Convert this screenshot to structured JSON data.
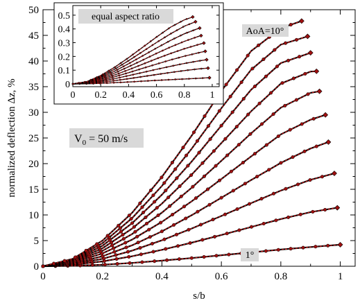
{
  "chart_data": [
    {
      "type": "line",
      "xlabel": "s/b",
      "ylabel": "normalized deflection Δz, %",
      "xlim": [
        0,
        1.05
      ],
      "ylim": [
        0,
        50
      ],
      "xticks": [
        0,
        0.2,
        0.4,
        0.6,
        0.8,
        1
      ],
      "xtick_labels": [
        "0",
        "0.2",
        "0.4",
        "0.6",
        "0.8",
        "1"
      ],
      "yticks": [
        0,
        5,
        10,
        15,
        20,
        25,
        30,
        35,
        40,
        45,
        50
      ],
      "ytick_labels": [
        "0",
        "5",
        "10",
        "15",
        "20",
        "25",
        "30",
        "35",
        "40",
        "45",
        "50"
      ],
      "grid": false,
      "annotations": [
        {
          "text": "V",
          "sub": "0",
          "rest": " = 50 m/s"
        },
        {
          "text": "AoA=10°"
        },
        {
          "text": "1°"
        }
      ],
      "line_color": "#000000",
      "marker_color": "#a01010",
      "overlay_color": "#cc1818",
      "label_box_color": "#d9d9d9",
      "series": [
        {
          "x": [
            0,
            0.1,
            0.2,
            0.3,
            0.4,
            0.5,
            0.6,
            0.7,
            0.8,
            0.9,
            1.0
          ],
          "y": [
            0,
            0.08,
            0.3,
            0.65,
            1.1,
            1.6,
            2.15,
            2.7,
            3.25,
            3.75,
            4.2
          ]
        },
        {
          "x": [
            0,
            0.1,
            0.2,
            0.3,
            0.4,
            0.5,
            0.6,
            0.7,
            0.8,
            0.9,
            0.99
          ],
          "y": [
            0,
            0.27,
            0.95,
            1.95,
            3.2,
            4.6,
            6.1,
            7.65,
            9.2,
            10.55,
            11.4
          ]
        },
        {
          "x": [
            0,
            0.1,
            0.2,
            0.3,
            0.4,
            0.5,
            0.6,
            0.7,
            0.8,
            0.9,
            0.98
          ],
          "y": [
            0,
            0.4,
            1.45,
            3.05,
            5.05,
            7.35,
            9.8,
            12.3,
            14.75,
            16.85,
            18.1
          ]
        },
        {
          "x": [
            0,
            0.1,
            0.2,
            0.3,
            0.4,
            0.5,
            0.6,
            0.7,
            0.8,
            0.9,
            0.96
          ],
          "y": [
            0,
            0.55,
            1.95,
            4.1,
            6.8,
            9.95,
            13.35,
            16.8,
            20.15,
            22.95,
            24.2
          ]
        },
        {
          "x": [
            0,
            0.1,
            0.2,
            0.3,
            0.4,
            0.5,
            0.6,
            0.7,
            0.8,
            0.9,
            0.95
          ],
          "y": [
            0,
            0.7,
            2.5,
            5.2,
            8.65,
            12.65,
            17.0,
            21.4,
            25.7,
            28.55,
            29.5
          ]
        },
        {
          "x": [
            0,
            0.1,
            0.2,
            0.3,
            0.4,
            0.5,
            0.6,
            0.7,
            0.8,
            0.9,
            0.93
          ],
          "y": [
            0,
            0.85,
            3.0,
            6.3,
            10.45,
            15.3,
            20.55,
            25.9,
            30.9,
            33.8,
            34.1
          ]
        },
        {
          "x": [
            0,
            0.1,
            0.2,
            0.3,
            0.4,
            0.5,
            0.6,
            0.7,
            0.8,
            0.9,
            0.92
          ],
          "y": [
            0,
            1.0,
            3.5,
            7.35,
            12.2,
            17.85,
            24.0,
            30.2,
            35.6,
            37.95,
            38.0
          ]
        },
        {
          "x": [
            0,
            0.1,
            0.2,
            0.3,
            0.4,
            0.5,
            0.6,
            0.7,
            0.8,
            0.9,
            0.9
          ],
          "y": [
            0,
            1.15,
            4.0,
            8.4,
            13.95,
            20.4,
            27.4,
            34.4,
            39.6,
            41.6,
            41.6
          ]
        },
        {
          "x": [
            0,
            0.1,
            0.2,
            0.3,
            0.4,
            0.5,
            0.6,
            0.7,
            0.8,
            0.89
          ],
          "y": [
            0,
            1.3,
            4.5,
            9.4,
            15.65,
            22.9,
            30.8,
            38.3,
            43.2,
            44.8
          ]
        },
        {
          "x": [
            0,
            0.1,
            0.2,
            0.3,
            0.4,
            0.5,
            0.6,
            0.7,
            0.8,
            0.87
          ],
          "y": [
            0,
            1.45,
            5.0,
            10.45,
            17.4,
            25.45,
            34.15,
            41.95,
            46.4,
            47.8
          ]
        }
      ]
    },
    {
      "type": "line",
      "title": "equal aspect ratio",
      "xlim": [
        0,
        1.05
      ],
      "ylim": [
        -0.02,
        0.57
      ],
      "xticks": [
        0,
        0.2,
        0.4,
        0.6,
        0.8,
        1
      ],
      "xtick_labels": [
        "0",
        "0.2",
        "0.4",
        "0.6",
        "0.8",
        "1"
      ],
      "yticks": [
        0,
        0.1,
        0.2,
        0.3,
        0.4,
        0.5
      ],
      "ytick_labels": [
        "0",
        "0.1",
        "0.2",
        "0.3",
        "0.4",
        "0.5"
      ],
      "grid": false,
      "series": [
        {
          "x": [
            0,
            0.1,
            0.2,
            0.3,
            0.4,
            0.5,
            0.6,
            0.7,
            0.8,
            0.9,
            0.98
          ],
          "y": [
            0,
            0.001,
            0.004,
            0.009,
            0.014,
            0.02,
            0.026,
            0.031,
            0.036,
            0.041,
            0.045
          ]
        },
        {
          "x": [
            0,
            0.1,
            0.2,
            0.3,
            0.4,
            0.5,
            0.6,
            0.7,
            0.8,
            0.9,
            0.97
          ],
          "y": [
            0,
            0.003,
            0.012,
            0.024,
            0.038,
            0.053,
            0.068,
            0.083,
            0.097,
            0.109,
            0.115
          ]
        },
        {
          "x": [
            0,
            0.1,
            0.2,
            0.3,
            0.4,
            0.5,
            0.6,
            0.7,
            0.8,
            0.9,
            0.96
          ],
          "y": [
            0,
            0.005,
            0.019,
            0.038,
            0.06,
            0.083,
            0.106,
            0.128,
            0.149,
            0.167,
            0.176
          ]
        },
        {
          "x": [
            0,
            0.1,
            0.2,
            0.3,
            0.4,
            0.5,
            0.6,
            0.7,
            0.8,
            0.9,
            0.95
          ],
          "y": [
            0,
            0.007,
            0.026,
            0.052,
            0.082,
            0.113,
            0.144,
            0.174,
            0.202,
            0.226,
            0.237
          ]
        },
        {
          "x": [
            0,
            0.1,
            0.2,
            0.3,
            0.4,
            0.5,
            0.6,
            0.7,
            0.8,
            0.9,
            0.94
          ],
          "y": [
            0,
            0.009,
            0.033,
            0.065,
            0.103,
            0.143,
            0.183,
            0.221,
            0.256,
            0.286,
            0.297
          ]
        },
        {
          "x": [
            0,
            0.1,
            0.2,
            0.3,
            0.4,
            0.5,
            0.6,
            0.7,
            0.8,
            0.9,
            0.92
          ],
          "y": [
            0,
            0.011,
            0.04,
            0.079,
            0.125,
            0.173,
            0.222,
            0.268,
            0.31,
            0.345,
            0.351
          ]
        },
        {
          "x": [
            0,
            0.1,
            0.2,
            0.3,
            0.4,
            0.5,
            0.6,
            0.7,
            0.8,
            0.9,
            0.91
          ],
          "y": [
            0,
            0.013,
            0.047,
            0.093,
            0.147,
            0.204,
            0.261,
            0.316,
            0.365,
            0.403,
            0.406
          ]
        },
        {
          "x": [
            0,
            0.1,
            0.2,
            0.3,
            0.4,
            0.5,
            0.6,
            0.7,
            0.8,
            0.88
          ],
          "y": [
            0,
            0.015,
            0.054,
            0.107,
            0.169,
            0.235,
            0.301,
            0.364,
            0.42,
            0.452
          ]
        },
        {
          "x": [
            0,
            0.1,
            0.2,
            0.3,
            0.4,
            0.5,
            0.6,
            0.7,
            0.8,
            0.86
          ],
          "y": [
            0,
            0.017,
            0.061,
            0.121,
            0.191,
            0.266,
            0.341,
            0.412,
            0.466,
            0.487
          ]
        }
      ]
    }
  ]
}
